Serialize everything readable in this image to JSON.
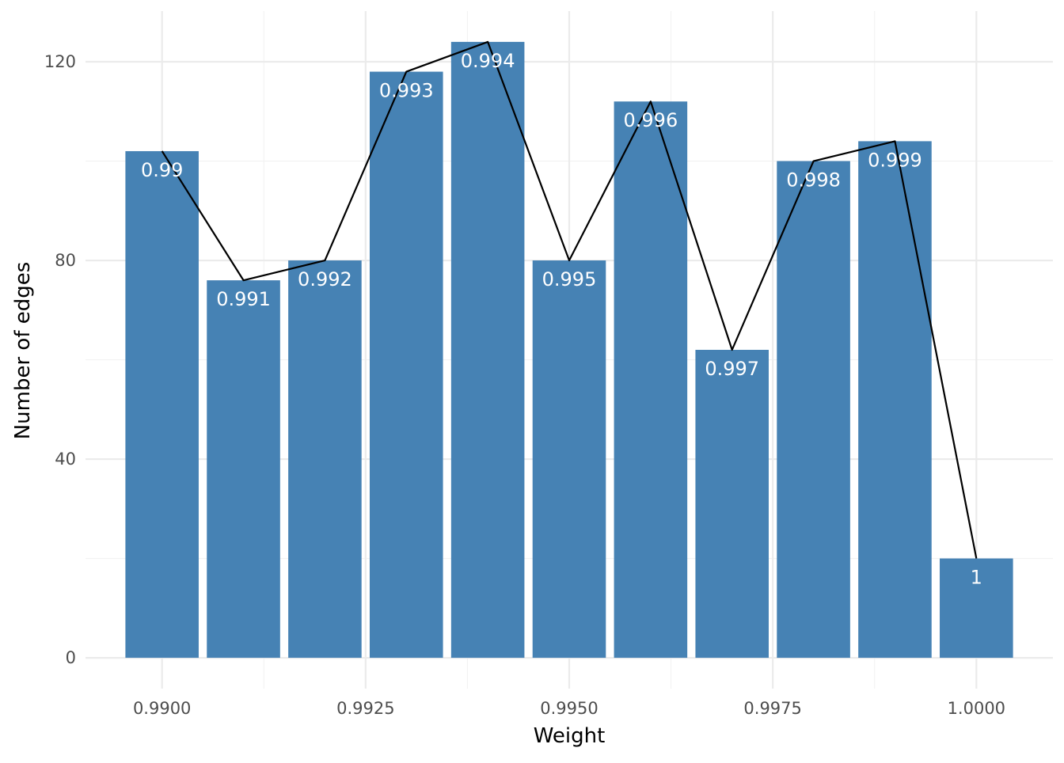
{
  "chart_data": {
    "type": "bar",
    "xlabel": "Weight",
    "ylabel": "Number of edges",
    "x": [
      0.99,
      0.991,
      0.992,
      0.993,
      0.994,
      0.995,
      0.996,
      0.997,
      0.998,
      0.999,
      1.0
    ],
    "values": [
      102,
      76,
      80,
      118,
      124,
      80,
      112,
      62,
      100,
      104,
      20
    ],
    "bar_labels": [
      "0.99",
      "0.991",
      "0.992",
      "0.993",
      "0.994",
      "0.995",
      "0.996",
      "0.997",
      "0.998",
      "0.999",
      "1"
    ],
    "overlay_line": {
      "type": "line",
      "values": [
        102,
        76,
        80,
        118,
        124,
        80,
        112,
        62,
        100,
        104,
        20
      ]
    },
    "xlim": [
      0.98906,
      1.00094
    ],
    "ylim": [
      -6.2,
      130.2
    ],
    "x_ticks": [
      0.99,
      0.9925,
      0.995,
      0.9975,
      1.0
    ],
    "x_tick_labels": [
      "0.9900",
      "0.9925",
      "0.9950",
      "0.9975",
      "1.0000"
    ],
    "y_ticks": [
      0,
      40,
      80,
      120
    ],
    "y_tick_labels": [
      "0",
      "40",
      "80",
      "120"
    ],
    "grid": true,
    "legend": "none",
    "colors": {
      "bar": "#4682b4",
      "line": "#000000",
      "bar_label": "#ffffff",
      "grid": "#ebebeb",
      "tick_label": "#4d4d4d"
    }
  }
}
